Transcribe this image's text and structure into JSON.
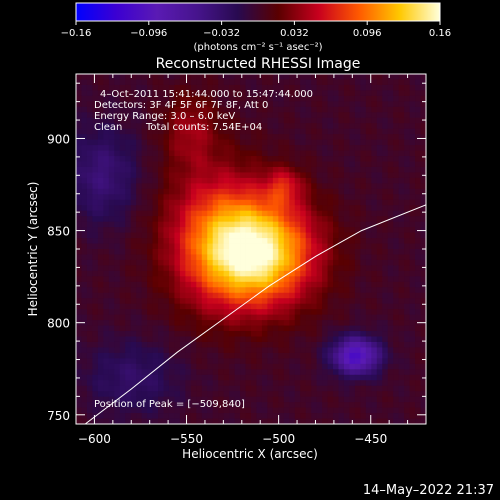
{
  "chart_data": {
    "type": "heatmap",
    "title": "Reconstructed RHESSI Image",
    "xlabel": "Heliocentric X (arcsec)",
    "ylabel": "Heliocentric Y (arcsec)",
    "xlim": [
      -610,
      -420
    ],
    "ylim": [
      745,
      935
    ],
    "x_ticks": [
      -600,
      -550,
      -500,
      -450
    ],
    "y_ticks": [
      750,
      800,
      850,
      900
    ],
    "x_tick_labels": [
      "−600",
      "−550",
      "−500",
      "−450"
    ],
    "y_tick_labels": [
      "750",
      "800",
      "850",
      "900"
    ],
    "colorbar": {
      "range": [
        -0.16,
        0.16
      ],
      "ticks": [
        -0.16,
        -0.096,
        -0.032,
        0.032,
        0.096,
        0.16
      ],
      "tick_labels": [
        "−0.16",
        "−0.096",
        "−0.032",
        "0.032",
        "0.096",
        "0.16"
      ],
      "units_label": "(photons cm⁻² s⁻¹ asec⁻²)"
    },
    "annotations": {
      "time_range": "4–Oct–2011 15:41:44.000 to 15:47:44.000",
      "detectors": "Detectors: 3F 4F 5F 6F 7F 8F, Att 0",
      "energy": "Energy Range: 3.0 – 6.0 keV",
      "clean": "Clean",
      "total_counts": "Total counts: 7.54E+04",
      "peak": "Position of Peak = [−509,840]"
    },
    "peak_position": [
      -509,
      840
    ],
    "source_blobs": [
      {
        "x": -512,
        "y": 838,
        "sx": 22,
        "sy": 20,
        "amp": 0.15
      },
      {
        "x": -535,
        "y": 850,
        "sx": 20,
        "sy": 28,
        "amp": 0.055
      },
      {
        "x": -548,
        "y": 905,
        "sx": 10,
        "sy": 14,
        "amp": 0.035
      },
      {
        "x": -497,
        "y": 874,
        "sx": 7,
        "sy": 7,
        "amp": 0.045
      },
      {
        "x": -458,
        "y": 782,
        "sx": 9,
        "sy": 7,
        "amp": -0.11
      },
      {
        "x": -596,
        "y": 880,
        "sx": 14,
        "sy": 18,
        "amp": -0.04
      },
      {
        "x": -580,
        "y": 770,
        "sx": 18,
        "sy": 14,
        "amp": -0.03
      }
    ],
    "limb_curve": {
      "x": [
        -605,
        -580,
        -555,
        -530,
        -505,
        -480,
        -455,
        -420
      ],
      "y": [
        745,
        764,
        784,
        802,
        820,
        836,
        850,
        864
      ]
    },
    "footer_timestamp": "14–May–2022 21:37",
    "colors": {
      "background": "#000000",
      "text": "#ffffff",
      "limb": "#ffffff",
      "colormap": [
        "#0000ff",
        "#3c00d2",
        "#5a1ab4",
        "#46148c",
        "#280a50",
        "#5a0000",
        "#c8001e",
        "#ff5a00",
        "#ffc800",
        "#ffffdc"
      ]
    }
  }
}
